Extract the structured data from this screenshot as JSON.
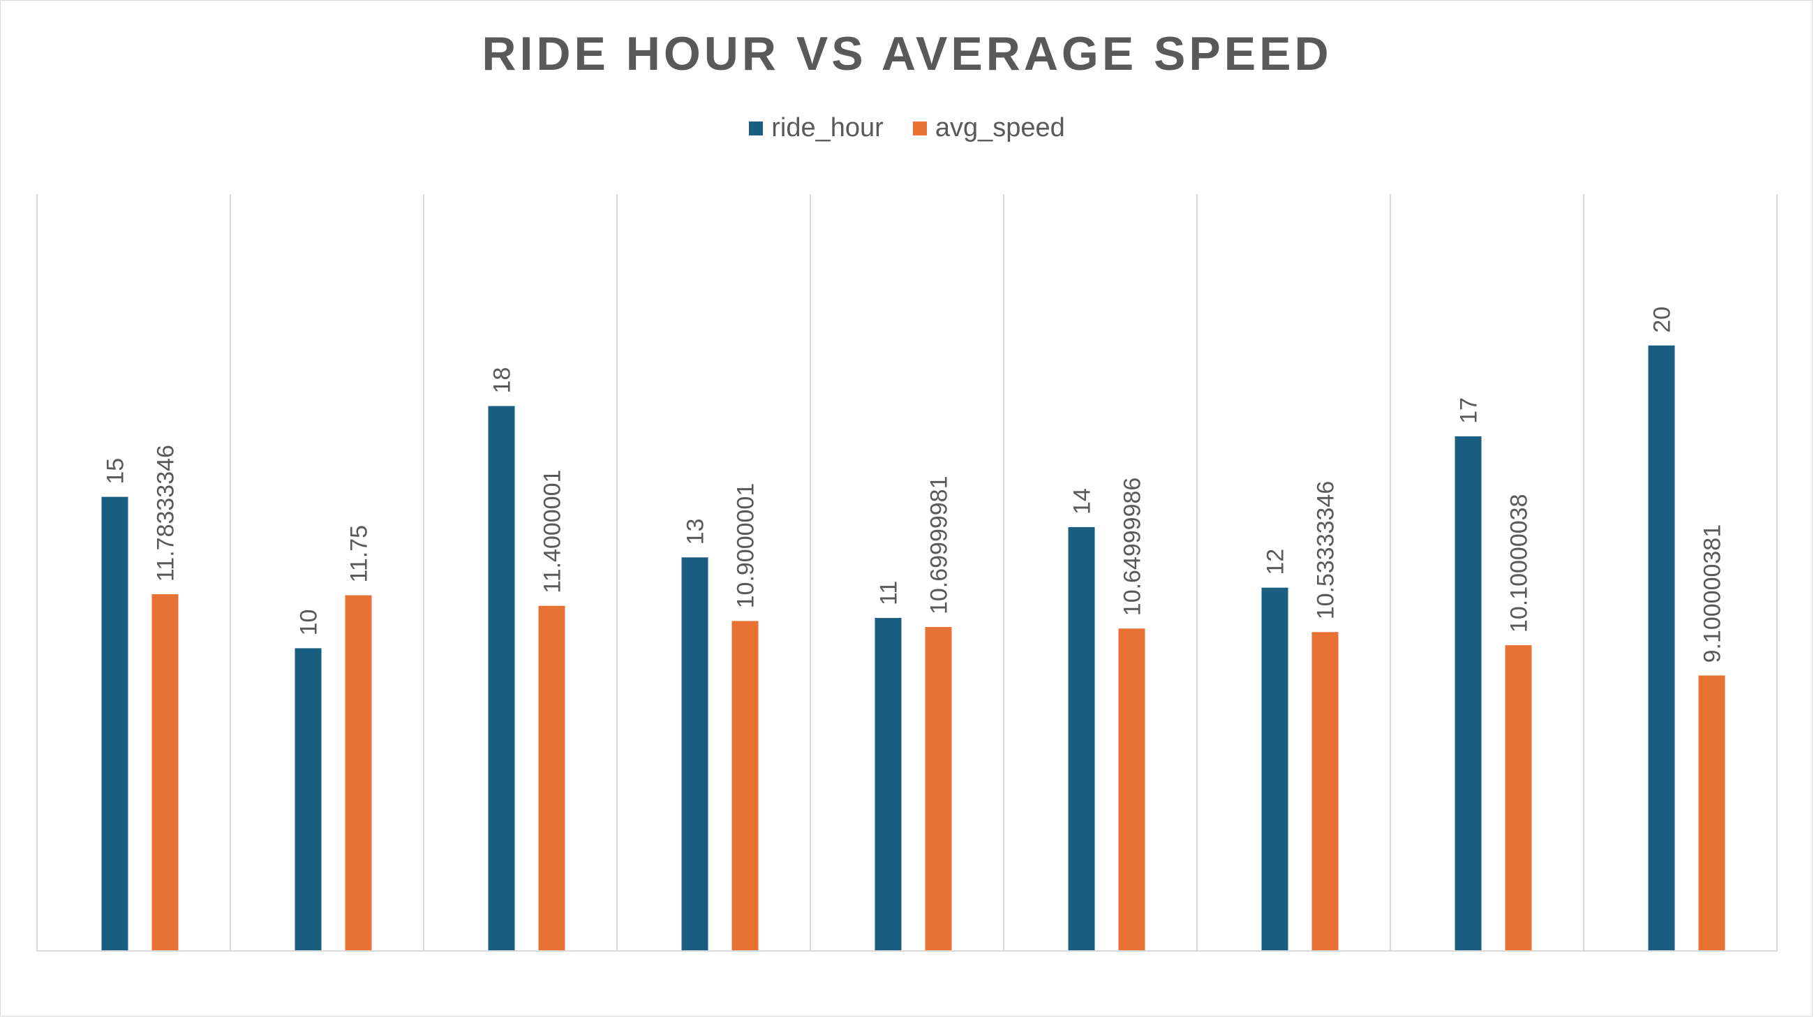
{
  "chart_data": {
    "type": "bar",
    "title": "RIDE HOUR VS AVERAGE SPEED",
    "xlabel": "",
    "ylabel": "",
    "categories": [
      "",
      "",
      "",
      "",
      "",
      "",
      "",
      "",
      ""
    ],
    "series": [
      {
        "name": "ride_hour",
        "color": "#1a5e82",
        "values": [
          15,
          10,
          18,
          13,
          11,
          14,
          12,
          17,
          20
        ],
        "labels": [
          "15",
          "10",
          "18",
          "13",
          "11",
          "14",
          "12",
          "17",
          "20"
        ]
      },
      {
        "name": "avg_speed",
        "color": "#e87233",
        "values": [
          11.78333346,
          11.75,
          11.4000001,
          10.9000001,
          10.69999981,
          10.64999986,
          10.53333346,
          10.10000038,
          9.100000381
        ],
        "labels": [
          "11.78333346",
          "11.75",
          "11.4000001",
          "10.9000001",
          "10.69999981",
          "10.64999986",
          "10.53333346",
          "10.10000038",
          "9.100000381"
        ]
      }
    ],
    "ylim": [
      0,
      25
    ],
    "grid": "vertical-category-dividers",
    "legend": "top-center",
    "data_labels": "rotated-vertical"
  },
  "colors": {
    "title": "#595959",
    "label": "#595959",
    "gridline": "#d9d9d9"
  }
}
